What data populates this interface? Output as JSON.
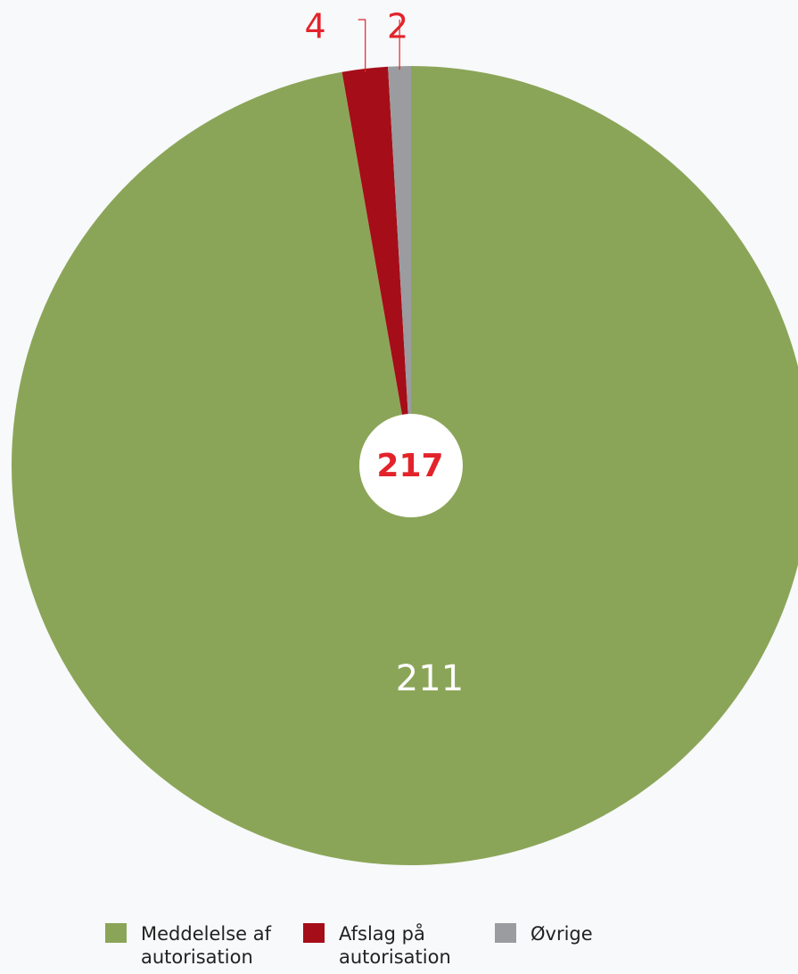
{
  "chart_data": {
    "type": "pie",
    "categories": [
      "Meddelelse af autorisation",
      "Afslag på autorisation",
      "Øvrige"
    ],
    "values": [
      211,
      4,
      2
    ],
    "colors": [
      "#8ba558",
      "#a50d18",
      "#9b9c9f"
    ],
    "total": 217,
    "legend": "bottom"
  }
}
